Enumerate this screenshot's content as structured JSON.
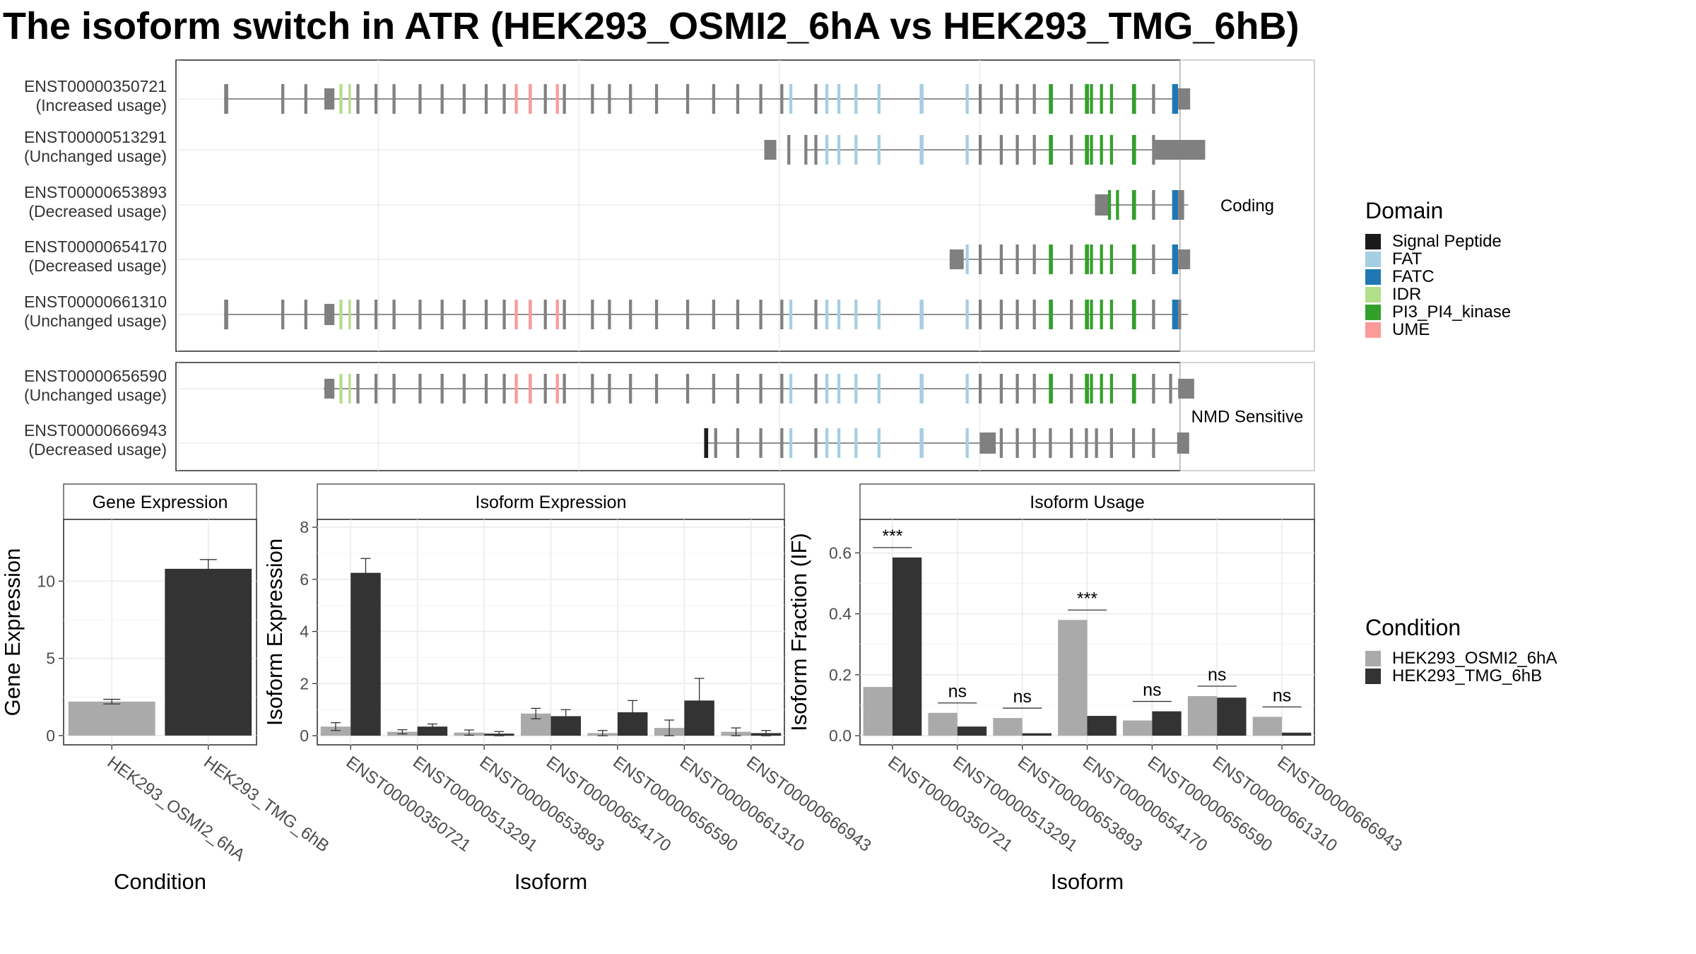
{
  "title": "The isoform switch in ATR (HEK293_OSMI2_6hA vs HEK293_TMG_6hB)",
  "domain_colors": {
    "exon": "#808080",
    "Signal Peptide": "#1a1a1a",
    "FAT": "#a6cee3",
    "FATC": "#1f78b4",
    "IDR": "#b2df8a",
    "PI3_PI4_kinase": "#33a02c",
    "UME": "#fb9a99"
  },
  "domain_legend": {
    "title": "Domain",
    "items": [
      {
        "label": "Signal Peptide",
        "color": "#1a1a1a"
      },
      {
        "label": "FAT",
        "color": "#a6cee3"
      },
      {
        "label": "FATC",
        "color": "#1f78b4"
      },
      {
        "label": "IDR",
        "color": "#b2df8a"
      },
      {
        "label": "PI3_PI4_kinase",
        "color": "#33a02c"
      },
      {
        "label": "UME",
        "color": "#fb9a99"
      }
    ]
  },
  "condition_legend": {
    "title": "Condition",
    "items": [
      {
        "label": "HEK293_OSMI2_6hA",
        "color": "#aaaaaa"
      },
      {
        "label": "HEK293_TMG_6hB",
        "color": "#333333"
      }
    ]
  },
  "chart_data": [
    {
      "type": "gene-structure",
      "coordinate_range": [
        0,
        100
      ],
      "panels": [
        {
          "label": "Coding",
          "isoforms": [
            {
              "id": "ENST00000350721",
              "usage": "(Increased usage)",
              "start": 4.6,
              "end": 101.5
            },
            {
              "id": "ENST00000513291",
              "usage": "(Unchanged usage)",
              "start": 62.7,
              "end": 101.5
            },
            {
              "id": "ENST00000653893",
              "usage": "(Decreased usage)",
              "start": 91.5,
              "end": 101.5
            },
            {
              "id": "ENST00000654170",
              "usage": "(Decreased usage)",
              "start": 77.0,
              "end": 101.5
            },
            {
              "id": "ENST00000661310",
              "usage": "(Unchanged usage)",
              "start": 4.6,
              "end": 101.5
            }
          ]
        },
        {
          "label": "NMD Sensitive",
          "isoforms": [
            {
              "id": "ENST00000656590",
              "usage": "(Unchanged usage)",
              "start": 14.5,
              "end": 101.5
            },
            {
              "id": "ENST00000666943",
              "usage": "(Decreased usage)",
              "start": 52.5,
              "end": 101.5
            }
          ]
        }
      ]
    },
    {
      "type": "bar",
      "title": "Gene Expression",
      "xlabel": "Condition",
      "ylabel": "Gene Expression",
      "ylim": [
        -0.6,
        14
      ],
      "yticks": [
        0,
        5,
        10
      ],
      "categories": [
        "HEK293_OSMI2_6hA",
        "HEK293_TMG_6hB"
      ],
      "values": [
        2.2,
        10.8
      ],
      "errors": [
        0.15,
        0.6
      ],
      "colors": [
        "#aaaaaa",
        "#333333"
      ]
    },
    {
      "type": "bar",
      "title": "Isoform Expression",
      "xlabel": "Isoform",
      "ylabel": "Isoform Expression",
      "ylim": [
        -0.35,
        8.3
      ],
      "yticks": [
        0,
        2,
        4,
        6,
        8
      ],
      "categories": [
        "ENST00000350721",
        "ENST00000513291",
        "ENST00000653893",
        "ENST00000654170",
        "ENST00000656590",
        "ENST00000661310",
        "ENST00000666943"
      ],
      "series": [
        {
          "name": "HEK293_OSMI2_6hA",
          "color": "#aaaaaa",
          "values": [
            0.35,
            0.15,
            0.12,
            0.85,
            0.1,
            0.3,
            0.15
          ],
          "errors": [
            0.15,
            0.08,
            0.1,
            0.2,
            0.1,
            0.3,
            0.15
          ]
        },
        {
          "name": "HEK293_TMG_6hB",
          "color": "#333333",
          "values": [
            6.25,
            0.35,
            0.08,
            0.75,
            0.9,
            1.35,
            0.1
          ],
          "errors": [
            0.55,
            0.1,
            0.08,
            0.25,
            0.45,
            0.85,
            0.1
          ]
        }
      ]
    },
    {
      "type": "bar",
      "title": "Isoform Usage",
      "xlabel": "Isoform",
      "ylabel": "Isoform Fraction (IF)",
      "ylim": [
        -0.03,
        0.71
      ],
      "yticks": [
        0.0,
        0.2,
        0.4,
        0.6
      ],
      "categories": [
        "ENST00000350721",
        "ENST00000513291",
        "ENST00000653893",
        "ENST00000654170",
        "ENST00000656590",
        "ENST00000661310",
        "ENST00000666943"
      ],
      "series": [
        {
          "name": "HEK293_OSMI2_6hA",
          "color": "#aaaaaa",
          "values": [
            0.16,
            0.075,
            0.058,
            0.38,
            0.05,
            0.13,
            0.062
          ]
        },
        {
          "name": "HEK293_TMG_6hB",
          "color": "#333333",
          "values": [
            0.585,
            0.03,
            0.008,
            0.065,
            0.08,
            0.125,
            0.01
          ]
        }
      ],
      "significance": [
        "***",
        "ns",
        "ns",
        "***",
        "ns",
        "ns",
        "ns"
      ]
    }
  ]
}
